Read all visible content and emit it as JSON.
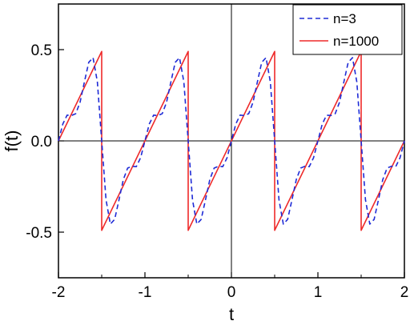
{
  "chart_data": {
    "type": "line",
    "title": "",
    "xlabel": "t",
    "ylabel": "f(t)",
    "xlim": [
      -2,
      2
    ],
    "ylim": [
      -0.75,
      0.75
    ],
    "x_ticks": [
      -2,
      -1,
      0,
      1,
      2
    ],
    "x_tick_labels": [
      "-2",
      "-1",
      "0",
      "1",
      "2"
    ],
    "y_ticks": [
      -0.5,
      0.0,
      0.5
    ],
    "y_tick_labels": [
      "-0.5",
      "0.0",
      "0.5"
    ],
    "zero_lines": true,
    "grid": false,
    "legend_position": "top-right",
    "series": [
      {
        "name": "n=3",
        "color": "#1f2bd6",
        "style": "dashed",
        "x": [
          -2.0,
          -1.95,
          -1.9,
          -1.85,
          -1.8,
          -1.75,
          -1.7,
          -1.65,
          -1.6,
          -1.55,
          -1.5,
          -1.45,
          -1.4,
          -1.35,
          -1.3,
          -1.25,
          -1.2,
          -1.15,
          -1.1,
          -1.05,
          -1.0,
          -0.95,
          -0.9,
          -0.85,
          -0.8,
          -0.75,
          -0.7,
          -0.65,
          -0.6,
          -0.55,
          -0.5,
          -0.45,
          -0.4,
          -0.35,
          -0.3,
          -0.25,
          -0.2,
          -0.15,
          -0.1,
          -0.05,
          0.0,
          0.05,
          0.1,
          0.15,
          0.2,
          0.25,
          0.3,
          0.35,
          0.4,
          0.45,
          0.5,
          0.55,
          0.6,
          0.65,
          0.7,
          0.75,
          0.8,
          0.85,
          0.9,
          0.95,
          1.0,
          1.05,
          1.1,
          1.15,
          1.2,
          1.25,
          1.3,
          1.35,
          1.4,
          1.45,
          1.5,
          1.55,
          1.6,
          1.65,
          1.7,
          1.75,
          1.8,
          1.85,
          1.9,
          1.95,
          2.0
        ],
        "y": [
          0.0,
          0.092,
          0.141,
          0.139,
          0.149,
          0.212,
          0.323,
          0.43,
          0.456,
          0.323,
          0.0,
          -0.323,
          -0.456,
          -0.43,
          -0.323,
          -0.212,
          -0.149,
          -0.139,
          -0.141,
          -0.092,
          0.0,
          0.092,
          0.141,
          0.139,
          0.149,
          0.212,
          0.323,
          0.43,
          0.456,
          0.323,
          0.0,
          -0.323,
          -0.456,
          -0.43,
          -0.323,
          -0.212,
          -0.149,
          -0.139,
          -0.141,
          -0.092,
          0.0,
          0.092,
          0.141,
          0.139,
          0.149,
          0.212,
          0.323,
          0.43,
          0.456,
          0.323,
          0.0,
          -0.323,
          -0.456,
          -0.43,
          -0.323,
          -0.212,
          -0.149,
          -0.139,
          -0.141,
          -0.092,
          0.0,
          0.092,
          0.141,
          0.139,
          0.149,
          0.212,
          0.323,
          0.43,
          0.456,
          0.323,
          0.0,
          -0.323,
          -0.456,
          -0.43,
          -0.323,
          -0.212,
          -0.149,
          -0.139,
          -0.141,
          -0.092,
          0.0
        ]
      },
      {
        "name": "n=1000",
        "color": "#ee2a2a",
        "style": "solid",
        "x": [
          -2.0,
          -1.5,
          -1.5,
          -0.5,
          -0.5,
          0.5,
          0.5,
          1.5,
          1.5,
          2.0
        ],
        "y": [
          0.0,
          0.49,
          -0.49,
          0.49,
          -0.49,
          0.49,
          -0.49,
          0.49,
          -0.49,
          0.0
        ]
      }
    ]
  }
}
